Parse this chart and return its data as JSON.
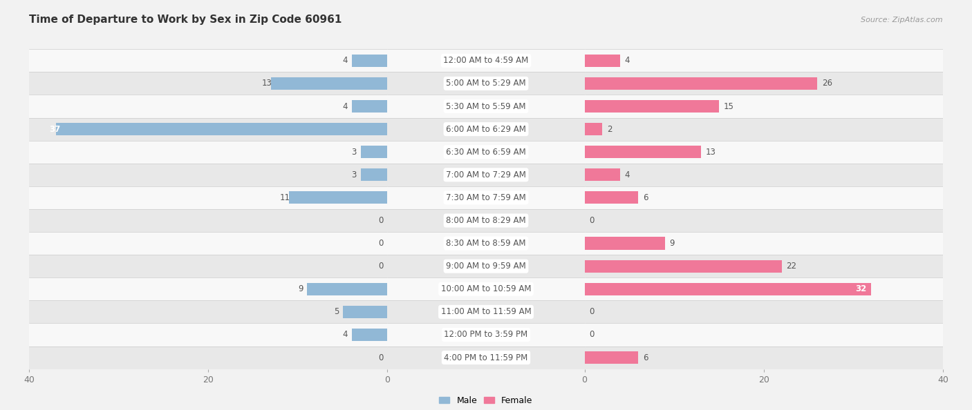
{
  "title": "Time of Departure to Work by Sex in Zip Code 60961",
  "source": "Source: ZipAtlas.com",
  "categories": [
    "12:00 AM to 4:59 AM",
    "5:00 AM to 5:29 AM",
    "5:30 AM to 5:59 AM",
    "6:00 AM to 6:29 AM",
    "6:30 AM to 6:59 AM",
    "7:00 AM to 7:29 AM",
    "7:30 AM to 7:59 AM",
    "8:00 AM to 8:29 AM",
    "8:30 AM to 8:59 AM",
    "9:00 AM to 9:59 AM",
    "10:00 AM to 10:59 AM",
    "11:00 AM to 11:59 AM",
    "12:00 PM to 3:59 PM",
    "4:00 PM to 11:59 PM"
  ],
  "male_values": [
    4,
    13,
    4,
    37,
    3,
    3,
    11,
    0,
    0,
    0,
    9,
    5,
    4,
    0
  ],
  "female_values": [
    4,
    26,
    15,
    2,
    13,
    4,
    6,
    0,
    9,
    22,
    32,
    0,
    0,
    6
  ],
  "male_color": "#91b8d6",
  "female_color": "#f07899",
  "background_color": "#f2f2f2",
  "row_bg_even": "#e8e8e8",
  "row_bg_odd": "#f8f8f8",
  "axis_limit": 40,
  "title_fontsize": 11,
  "label_fontsize": 8.5,
  "tick_fontsize": 9,
  "value_fontsize": 8.5,
  "bar_height": 0.55,
  "label_box_color": "#ffffff",
  "label_text_color": "#555555",
  "value_text_color": "#555555",
  "value_text_color_inside": "#ffffff",
  "inside_threshold": 30
}
